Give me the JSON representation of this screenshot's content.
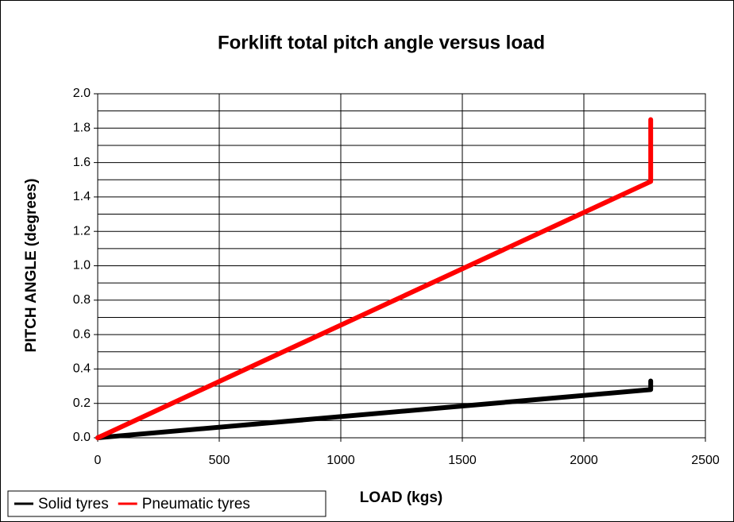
{
  "chart_data": {
    "type": "line",
    "title": "Forklift total pitch angle versus load",
    "xlabel": "LOAD (kgs)",
    "ylabel": "PITCH ANGLE (degrees)",
    "xlim": [
      0,
      2500
    ],
    "xticks": [
      0,
      500,
      1000,
      1500,
      2000,
      2500
    ],
    "ylim": [
      0,
      2.0
    ],
    "yticks": [
      {
        "value": 0,
        "label": "0.0"
      },
      0.2,
      0.4,
      0.6,
      0.8,
      {
        "value": 1,
        "label": "1.0"
      },
      1.2,
      1.4,
      1.6,
      1.8,
      {
        "value": 2,
        "label": "2.0"
      }
    ],
    "yminorticks": [
      0.1,
      0.3,
      0.5,
      0.7,
      0.9,
      1.1,
      1.3,
      1.5,
      1.7,
      1.9
    ],
    "grid": true,
    "legend": "bottom-left",
    "series": [
      {
        "name": "Solid tyres",
        "color": "#000000",
        "x": [
          0,
          2275,
          2275
        ],
        "values": [
          0,
          0.28,
          0.33
        ]
      },
      {
        "name": "Pneumatic tyres",
        "color": "#ff0000",
        "x": [
          0,
          2275,
          2275
        ],
        "values": [
          0,
          1.49,
          1.85
        ]
      }
    ]
  }
}
